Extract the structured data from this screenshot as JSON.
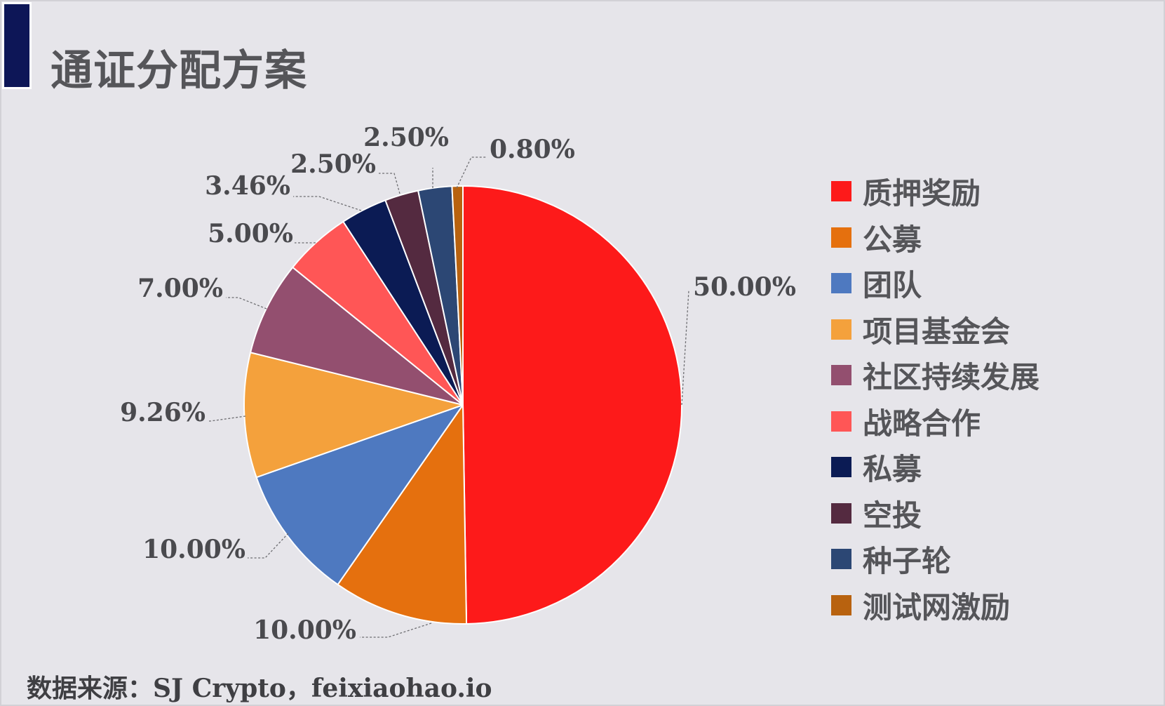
{
  "header": {
    "title": "通证分配方案"
  },
  "footer": {
    "source": "数据来源：SJ Crypto，feixiaohao.io"
  },
  "chart_data": {
    "type": "pie",
    "title": "通证分配方案",
    "direction": "clockwise from 12 o'clock",
    "legend_position": "right",
    "slices": [
      {
        "name": "质押奖励",
        "value": 50.0,
        "label": "50.00%",
        "color": "#fd1a1a"
      },
      {
        "name": "公募",
        "value": 10.0,
        "label": "10.00%",
        "color": "#e5700e"
      },
      {
        "name": "团队",
        "value": 10.0,
        "label": "10.00%",
        "color": "#4e79c0"
      },
      {
        "name": "项目基金会",
        "value": 9.26,
        "label": "9.26%",
        "color": "#f4a13c"
      },
      {
        "name": "社区持续发展",
        "value": 7.0,
        "label": "7.00%",
        "color": "#934f6f"
      },
      {
        "name": "战略合作",
        "value": 5.0,
        "label": "5.00%",
        "color": "#ff5656"
      },
      {
        "name": "私募",
        "value": 3.46,
        "label": "3.46%",
        "color": "#0b1b54"
      },
      {
        "name": "空投",
        "value": 2.5,
        "label": "2.50%",
        "color": "#542a40"
      },
      {
        "name": "种子轮",
        "value": 2.5,
        "label": "2.50%",
        "color": "#2c4774"
      },
      {
        "name": "测试网激励",
        "value": 0.8,
        "label": "0.80%",
        "color": "#b8620f"
      }
    ]
  }
}
